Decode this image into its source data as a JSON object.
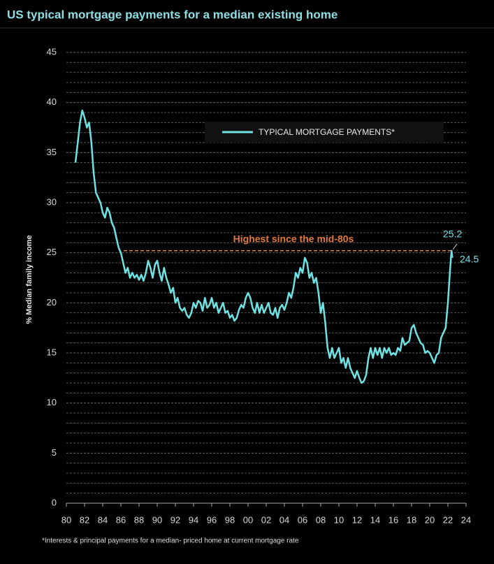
{
  "chart_data": {
    "type": "line",
    "title": "US typical mortgage payments for a median existing home",
    "ylabel": "% Median family income",
    "footnote": "*Interests & principal payments for a median- priced home at current mortgage rate",
    "annotation": "Highest since the mid-80s",
    "peak": {
      "x": 2022.4,
      "value": 25.2
    },
    "last": {
      "x": 2022.5,
      "value": 24.5
    },
    "xlim": [
      1980,
      2024
    ],
    "xticks": [
      {
        "value": 1980,
        "label": "80"
      },
      {
        "value": 1982,
        "label": "82"
      },
      {
        "value": 1984,
        "label": "84"
      },
      {
        "value": 1986,
        "label": "86"
      },
      {
        "value": 1988,
        "label": "88"
      },
      {
        "value": 1990,
        "label": "90"
      },
      {
        "value": 1992,
        "label": "92"
      },
      {
        "value": 1994,
        "label": "94"
      },
      {
        "value": 1996,
        "label": "96"
      },
      {
        "value": 1998,
        "label": "98"
      },
      {
        "value": 2000,
        "label": "00"
      },
      {
        "value": 2002,
        "label": "02"
      },
      {
        "value": 2004,
        "label": "04"
      },
      {
        "value": 2006,
        "label": "06"
      },
      {
        "value": 2008,
        "label": "08"
      },
      {
        "value": 2010,
        "label": "10"
      },
      {
        "value": 2012,
        "label": "12"
      },
      {
        "value": 2014,
        "label": "14"
      },
      {
        "value": 2016,
        "label": "16"
      },
      {
        "value": 2018,
        "label": "18"
      },
      {
        "value": 2020,
        "label": "20"
      },
      {
        "value": 2022,
        "label": "22"
      },
      {
        "value": 2024,
        "label": "24"
      }
    ],
    "ylim": [
      0,
      45
    ],
    "yticks": [
      0,
      5,
      10,
      15,
      20,
      25,
      30,
      35,
      40,
      45
    ],
    "minor_yticks": [
      1,
      2,
      3,
      4,
      6,
      7,
      8,
      9,
      11,
      12,
      13,
      14,
      16,
      17,
      18,
      19,
      21,
      22,
      23,
      24,
      26,
      27,
      28,
      29,
      31,
      32,
      33,
      34,
      36,
      37,
      38,
      39,
      41,
      42,
      43,
      44
    ],
    "grid": true,
    "legend": "top-right",
    "x": [
      1981,
      1981.25,
      1981.5,
      1981.75,
      1982,
      1982.25,
      1982.5,
      1982.75,
      1983,
      1983.25,
      1983.5,
      1983.75,
      1984,
      1984.25,
      1984.5,
      1984.75,
      1985,
      1985.25,
      1985.5,
      1985.75,
      1986,
      1986.25,
      1986.5,
      1986.75,
      1987,
      1987.25,
      1987.5,
      1987.75,
      1988,
      1988.25,
      1988.5,
      1988.75,
      1989,
      1989.25,
      1989.5,
      1989.75,
      1990,
      1990.25,
      1990.5,
      1990.75,
      1991,
      1991.25,
      1991.5,
      1991.75,
      1992,
      1992.25,
      1992.5,
      1992.75,
      1993,
      1993.25,
      1993.5,
      1993.75,
      1994,
      1994.25,
      1994.5,
      1994.75,
      1995,
      1995.25,
      1995.5,
      1995.75,
      1996,
      1996.25,
      1996.5,
      1996.75,
      1997,
      1997.25,
      1997.5,
      1997.75,
      1998,
      1998.25,
      1998.5,
      1998.75,
      1999,
      1999.25,
      1999.5,
      1999.75,
      2000,
      2000.25,
      2000.5,
      2000.75,
      2001,
      2001.25,
      2001.5,
      2001.75,
      2002,
      2002.25,
      2002.5,
      2002.75,
      2003,
      2003.25,
      2003.5,
      2003.75,
      2004,
      2004.25,
      2004.5,
      2004.75,
      2005,
      2005.25,
      2005.5,
      2005.75,
      2006,
      2006.25,
      2006.5,
      2006.75,
      2007,
      2007.25,
      2007.5,
      2007.75,
      2008,
      2008.25,
      2008.5,
      2008.75,
      2009,
      2009.25,
      2009.5,
      2009.75,
      2010,
      2010.25,
      2010.5,
      2010.75,
      2011,
      2011.25,
      2011.5,
      2011.75,
      2012,
      2012.25,
      2012.5,
      2012.75,
      2013,
      2013.25,
      2013.5,
      2013.75,
      2014,
      2014.25,
      2014.5,
      2014.75,
      2015,
      2015.25,
      2015.5,
      2015.75,
      2016,
      2016.25,
      2016.5,
      2016.75,
      2017,
      2017.25,
      2017.5,
      2017.75,
      2018,
      2018.25,
      2018.5,
      2018.75,
      2019,
      2019.25,
      2019.5,
      2019.75,
      2020,
      2020.25,
      2020.5,
      2020.75,
      2021,
      2021.25,
      2021.5,
      2021.75,
      2022,
      2022.25,
      2022.4,
      2022.5
    ],
    "series": [
      {
        "name": "TYPICAL MORTGAGE PAYMENTS*",
        "color": "#6fe3e3",
        "values": [
          34,
          36,
          38,
          39.2,
          38.5,
          37.5,
          38,
          36,
          33,
          31,
          30.5,
          30,
          29,
          28.5,
          29.5,
          29,
          28,
          27.5,
          26.5,
          25.5,
          25,
          24,
          23,
          23.5,
          22.5,
          23,
          22.5,
          22.8,
          22.3,
          22.8,
          22.2,
          23,
          24.2,
          23.5,
          22.5,
          23.8,
          24.2,
          23,
          22.2,
          23.5,
          22.5,
          21.8,
          21,
          21.5,
          20,
          20.5,
          19.5,
          19.2,
          19.5,
          18.8,
          18.5,
          19,
          20,
          19.5,
          20.2,
          20,
          19.2,
          20.5,
          19.5,
          19.8,
          20.5,
          19.5,
          20,
          19,
          19.5,
          20,
          19,
          19.2,
          18.5,
          18.8,
          18.2,
          18.5,
          19.3,
          19.8,
          19.5,
          20.5,
          21,
          20.5,
          19.5,
          19,
          20,
          19,
          19.8,
          19,
          19.5,
          20,
          19,
          18.8,
          19.5,
          18.5,
          19.5,
          19.8,
          19.3,
          20,
          21,
          20.5,
          21.5,
          23,
          22.5,
          23.5,
          23,
          24.5,
          24,
          22.5,
          23,
          22,
          22.5,
          21,
          19,
          20,
          18,
          15.5,
          14.5,
          15.5,
          14.5,
          15,
          15.5,
          14,
          14.5,
          13.5,
          14.5,
          13.5,
          13,
          12.5,
          13.2,
          12.5,
          12,
          12.2,
          12.8,
          14.5,
          15.5,
          14.5,
          15.5,
          14.8,
          15.5,
          14.5,
          15.5,
          15,
          15.5,
          14.8,
          15,
          14.8,
          15.5,
          15.2,
          16.5,
          15.8,
          16,
          16.2,
          17.5,
          17.8,
          17,
          16.5,
          16,
          15.8,
          15,
          15.2,
          15,
          14.5,
          14,
          14.8,
          15,
          16.5,
          17,
          17.5,
          20,
          23.5,
          25.2,
          24.5
        ]
      }
    ]
  }
}
